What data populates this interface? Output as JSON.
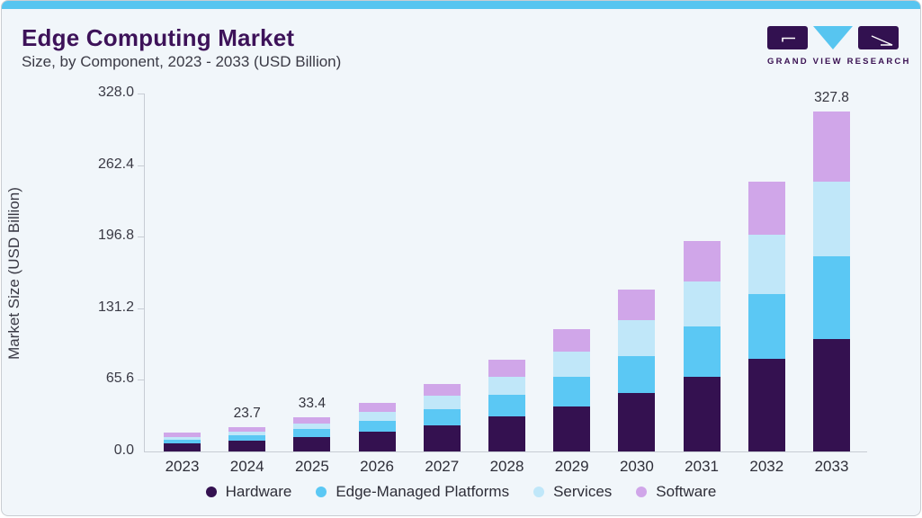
{
  "page": {
    "title": "Edge Computing Market",
    "subtitle": "Size, by Component, 2023 - 2033 (USD Billion)"
  },
  "logo": {
    "brand": "GRAND VIEW RESEARCH",
    "accent_color": "#57c5f0",
    "brand_color": "#321150"
  },
  "chart_data": {
    "type": "bar",
    "stacked": true,
    "title": "Edge Computing Market",
    "subtitle": "Size, by Component, 2023 - 2033 (USD Billion)",
    "ylabel": "Market Size (USD Billion)",
    "ylim": [
      0,
      328
    ],
    "yticks": [
      "328.0",
      "262.4",
      "196.8",
      "131.2",
      "65.6",
      "0.0"
    ],
    "grid": false,
    "legend_position": "bottom",
    "categories": [
      "2023",
      "2024",
      "2025",
      "2026",
      "2027",
      "2028",
      "2029",
      "2030",
      "2031",
      "2032",
      "2033"
    ],
    "series": [
      {
        "name": "Hardware",
        "color": "#341150",
        "values": [
          7.4,
          10.0,
          14.2,
          19.1,
          25.2,
          33.9,
          43.4,
          56.8,
          71.8,
          89.1,
          108.2
        ]
      },
      {
        "name": "Edge-Managed Platforms",
        "color": "#5bc8f4",
        "values": [
          3.9,
          5.2,
          7.4,
          10.2,
          15.6,
          20.6,
          29.0,
          35.6,
          48.9,
          62.5,
          80.1
        ]
      },
      {
        "name": "Services",
        "color": "#c0e7f9",
        "values": [
          3.0,
          3.6,
          5.3,
          9.2,
          12.8,
          17.4,
          24.3,
          34.7,
          43.1,
          57.5,
          71.8
        ]
      },
      {
        "name": "Software",
        "color": "#d0a6e9",
        "values": [
          3.5,
          4.9,
          6.5,
          8.2,
          11.5,
          16.5,
          21.3,
          28.9,
          39.3,
          51.5,
          67.7
        ]
      }
    ],
    "bar_total_labels": {
      "2024": "23.7",
      "2025": "33.4",
      "2033": "327.8"
    }
  }
}
